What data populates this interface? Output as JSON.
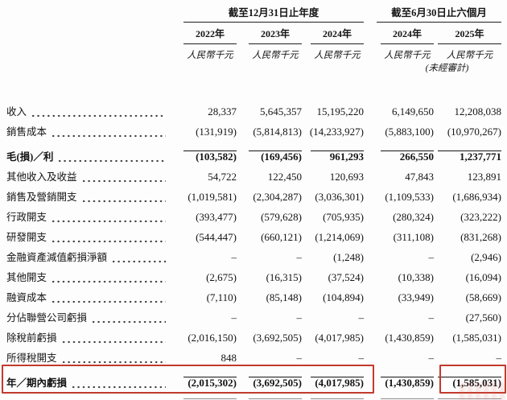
{
  "table": {
    "groups": [
      {
        "label": "截至12月31日止年度"
      },
      {
        "label": "截至6月30日止六個月"
      }
    ],
    "columns": [
      {
        "year": "2022年",
        "unit": "人民幣千元"
      },
      {
        "year": "2023年",
        "unit": "人民幣千元"
      },
      {
        "year": "2024年",
        "unit": "人民幣千元"
      },
      {
        "year": "2024年",
        "unit": "人民幣千元"
      },
      {
        "year": "2025年",
        "unit": "人民幣千元",
        "note": "(未經審計)"
      }
    ],
    "rows": [
      {
        "label": "收入",
        "values": [
          "28,337",
          "5,645,357",
          "15,195,220",
          "6,149,650",
          "12,208,038"
        ]
      },
      {
        "label": "銷售成本",
        "values": [
          "(131,919)",
          "(5,814,813)",
          "(14,233,927)",
          "(5,883,100)",
          "(10,970,267)"
        ]
      },
      {
        "label": "毛(損)／利",
        "values": [
          "(103,582)",
          "(169,456)",
          "961,293",
          "266,550",
          "1,237,771"
        ]
      },
      {
        "label": "其他收入及收益",
        "values": [
          "54,722",
          "122,450",
          "120,693",
          "47,843",
          "123,891"
        ]
      },
      {
        "label": "銷售及營銷開支",
        "values": [
          "(1,019,581)",
          "(2,304,287)",
          "(3,036,301)",
          "(1,109,533)",
          "(1,686,934)"
        ]
      },
      {
        "label": "行政開支",
        "values": [
          "(393,477)",
          "(579,628)",
          "(705,935)",
          "(280,324)",
          "(323,222)"
        ]
      },
      {
        "label": "研發開支",
        "values": [
          "(544,447)",
          "(660,121)",
          "(1,214,069)",
          "(311,108)",
          "(831,268)"
        ]
      },
      {
        "label": "金融資產減值虧損淨額",
        "values": [
          "–",
          "–",
          "(1,248)",
          "–",
          "(2,946)"
        ]
      },
      {
        "label": "其他開支",
        "values": [
          "(2,675)",
          "(16,315)",
          "(37,524)",
          "(10,338)",
          "(16,094)"
        ]
      },
      {
        "label": "融資成本",
        "values": [
          "(7,110)",
          "(85,148)",
          "(104,894)",
          "(33,949)",
          "(58,669)"
        ]
      },
      {
        "label": "分佔聯營公司虧損",
        "values": [
          "–",
          "–",
          "–",
          "–",
          "(27,560)"
        ]
      },
      {
        "label": "除稅前虧損",
        "values": [
          "(2,016,150)",
          "(3,692,505)",
          "(4,017,985)",
          "(1,430,859)",
          "(1,585,031)"
        ]
      },
      {
        "label": "所得稅開支",
        "values": [
          "848",
          "–",
          "–",
          "–",
          "–"
        ]
      },
      {
        "label": "年／期內虧損",
        "values": [
          "(2,015,302)",
          "(3,692,505)",
          "(4,017,985)",
          "(1,430,859)",
          "(1,585,031)"
        ]
      }
    ]
  },
  "colors": {
    "highlight_red": "#c23a2c",
    "double_rule_gray": "#8e8e8e",
    "text": "#141414"
  }
}
